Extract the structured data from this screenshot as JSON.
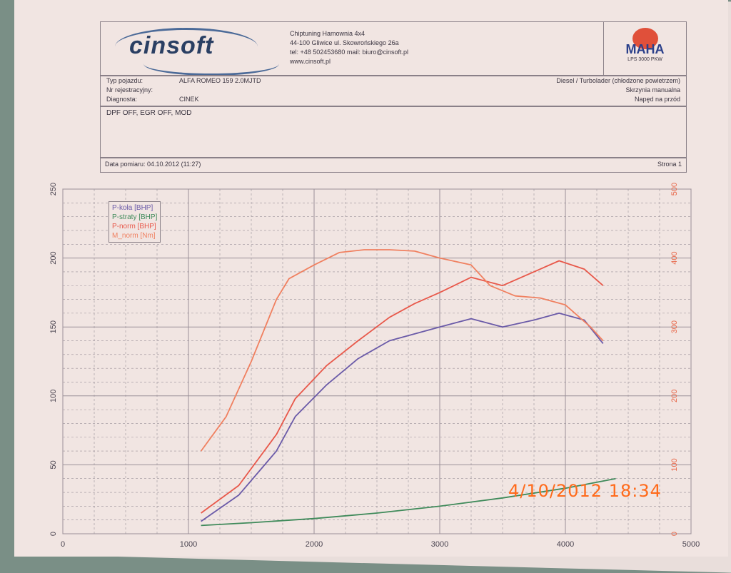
{
  "header": {
    "logo_text": "cinsoft",
    "address_lines": [
      "Chiptuning Hamownia 4x4",
      "44-100 Gliwice ul. Skowrońskiego 26a",
      "tel: +48 502453680  mail: biuro@cinsoft.pl",
      "www.cinsoft.pl"
    ],
    "dyno_brand": "MAHA",
    "dyno_model": "LPS 3000 PKW"
  },
  "vehicle": {
    "type_label": "Typ pojazdu:",
    "type_value": "ALFA ROMEO 159 2.0MJTD",
    "reg_label": "Nr rejestracyjny:",
    "reg_value": "",
    "diag_label": "Diagnosta:",
    "diag_value": "CINEK",
    "engine": "Diesel / Turbolader (chłodzone powietrzem)",
    "gearbox": "Skrzynia manualna",
    "drive": "Napęd na przód"
  },
  "notes": "DPF OFF, EGR OFF, MOD",
  "measurement": {
    "date_label": "Data pomiaru: 04.10.2012 (11:27)",
    "page_label": "Strona 1"
  },
  "camera_stamp": "4/10/2012   18:34",
  "colors": {
    "p_kola": "#6a5aa8",
    "p_straty": "#3f8a5a",
    "p_norm": "#e8584a",
    "m_norm": "#f08060"
  },
  "chart_data": {
    "type": "line",
    "xlim": [
      0,
      5000
    ],
    "ylim": [
      0,
      250
    ],
    "y2lim": [
      0,
      500
    ],
    "x_ticks": [
      "0",
      "1000",
      "2000",
      "3000",
      "4000",
      "5000"
    ],
    "y_ticks": [
      "0",
      "50",
      "100",
      "150",
      "200",
      "250"
    ],
    "y2_ticks": [
      "0",
      "100",
      "200",
      "300",
      "400",
      "500"
    ],
    "grid": true,
    "legend_position": "top-left",
    "series": [
      {
        "name": "P-koła [BHP]",
        "axis": "left",
        "color": "#6a5aa8",
        "x": [
          1100,
          1400,
          1700,
          1850,
          2100,
          2350,
          2600,
          2800,
          3000,
          3250,
          3500,
          3750,
          3950,
          4150,
          4300
        ],
        "y": [
          9,
          28,
          60,
          85,
          108,
          127,
          140,
          145,
          150,
          156,
          150,
          155,
          160,
          155,
          138
        ]
      },
      {
        "name": "P-straty [BHP]",
        "axis": "left",
        "color": "#3f8a5a",
        "x": [
          1100,
          1500,
          2000,
          2500,
          3000,
          3500,
          4000,
          4400
        ],
        "y": [
          6,
          8,
          11,
          15,
          20,
          26,
          33,
          40
        ]
      },
      {
        "name": "P-norm [BHP]",
        "axis": "left",
        "color": "#e8584a",
        "x": [
          1100,
          1400,
          1700,
          1850,
          2100,
          2350,
          2600,
          2800,
          3000,
          3250,
          3500,
          3750,
          3950,
          4150,
          4300
        ],
        "y": [
          15,
          35,
          72,
          98,
          122,
          140,
          157,
          167,
          175,
          186,
          180,
          190,
          198,
          192,
          180
        ]
      },
      {
        "name": "M_norm [Nm]",
        "axis": "right",
        "color": "#f08060",
        "x": [
          1100,
          1300,
          1500,
          1700,
          1800,
          2000,
          2200,
          2400,
          2600,
          2800,
          3000,
          3250,
          3400,
          3600,
          3800,
          4000,
          4200,
          4300
        ],
        "y": [
          120,
          170,
          250,
          340,
          370,
          390,
          408,
          412,
          412,
          410,
          400,
          390,
          360,
          345,
          342,
          332,
          300,
          280
        ]
      }
    ]
  }
}
